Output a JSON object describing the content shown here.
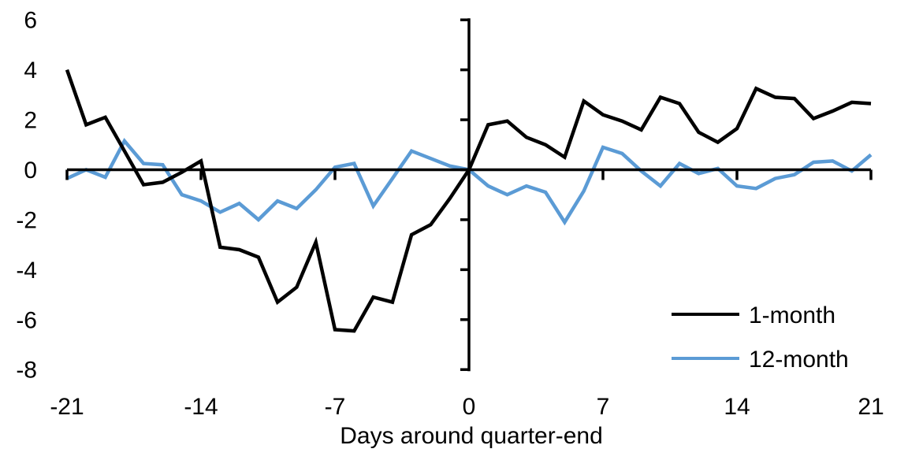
{
  "chart_data": {
    "type": "line",
    "title": "",
    "xlabel": "Days around quarter-end",
    "ylabel": "",
    "xlim": [
      -21,
      21
    ],
    "ylim": [
      -8,
      6
    ],
    "x_ticks": [
      -21,
      -14,
      -7,
      0,
      7,
      14,
      21
    ],
    "y_ticks": [
      6,
      4,
      2,
      0,
      -2,
      -4,
      -6,
      -8
    ],
    "grid": false,
    "legend_position": "inside-lower-right",
    "axis_color": "#000000",
    "background_color": "#ffffff",
    "x": [
      -21,
      -20,
      -19,
      -18,
      -17,
      -16,
      -15,
      -14,
      -13,
      -12,
      -11,
      -10,
      -9,
      -8,
      -7,
      -6,
      -5,
      -4,
      -3,
      -2,
      -1,
      0,
      1,
      2,
      3,
      4,
      5,
      6,
      7,
      8,
      9,
      10,
      11,
      12,
      13,
      14,
      15,
      16,
      17,
      18,
      19,
      20,
      21
    ],
    "series": [
      {
        "name": "1-month",
        "color": "#000000",
        "values": [
          4.0,
          1.8,
          2.1,
          0.75,
          -0.6,
          -0.5,
          -0.1,
          0.35,
          -3.1,
          -3.2,
          -3.5,
          -5.3,
          -4.7,
          -2.9,
          -6.4,
          -6.45,
          -5.1,
          -5.3,
          -2.6,
          -2.2,
          -1.15,
          0.0,
          1.8,
          1.95,
          1.3,
          1.0,
          0.5,
          2.75,
          2.2,
          1.95,
          1.6,
          2.9,
          2.65,
          1.5,
          1.1,
          1.65,
          3.25,
          2.9,
          2.85,
          2.05,
          2.35,
          2.7,
          2.65
        ]
      },
      {
        "name": "12-month",
        "color": "#5B9BD5",
        "values": [
          -0.35,
          0.0,
          -0.3,
          1.15,
          0.25,
          0.2,
          -1.0,
          -1.25,
          -1.7,
          -1.35,
          -2.0,
          -1.25,
          -1.55,
          -0.8,
          0.1,
          0.25,
          -1.45,
          -0.35,
          0.75,
          0.45,
          0.15,
          0.0,
          -0.65,
          -1.0,
          -0.65,
          -0.9,
          -2.1,
          -0.85,
          0.9,
          0.65,
          -0.05,
          -0.65,
          0.25,
          -0.15,
          0.05,
          -0.65,
          -0.75,
          -0.35,
          -0.2,
          0.3,
          0.35,
          -0.05,
          0.6
        ]
      }
    ]
  }
}
